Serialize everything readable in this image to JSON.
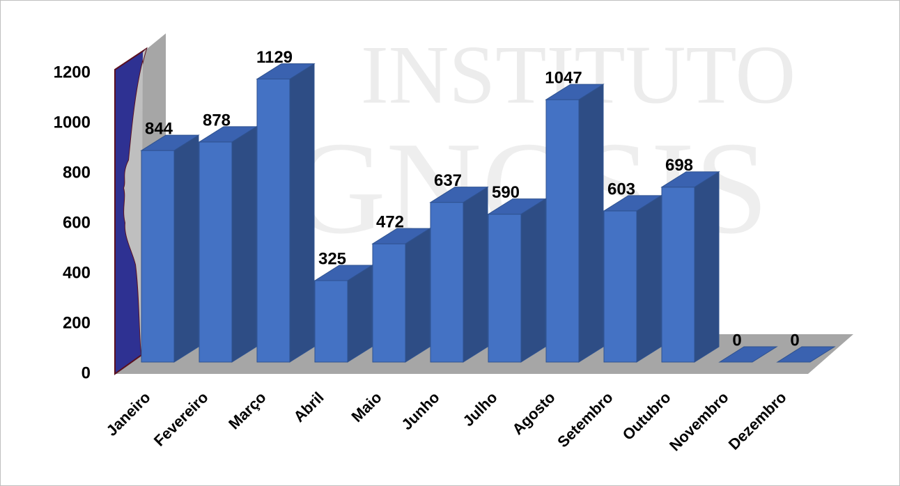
{
  "chart_data": {
    "type": "bar3d",
    "watermark": [
      "INSTITUTO",
      "GNOSIS"
    ],
    "categories": [
      "Janeiro",
      "Fevereiro",
      "Março",
      "Abril",
      "Maio",
      "Junho",
      "Julho",
      "Agosto",
      "Setembro",
      "Outubro",
      "Novembro",
      "Dezembro"
    ],
    "values": [
      844,
      878,
      1129,
      325,
      472,
      637,
      590,
      1047,
      603,
      698,
      0,
      0
    ],
    "color": "#4472c4",
    "ylim": [
      0,
      1200
    ],
    "yticks": [
      0,
      200,
      400,
      600,
      800,
      1000,
      1200
    ],
    "grid": false
  }
}
